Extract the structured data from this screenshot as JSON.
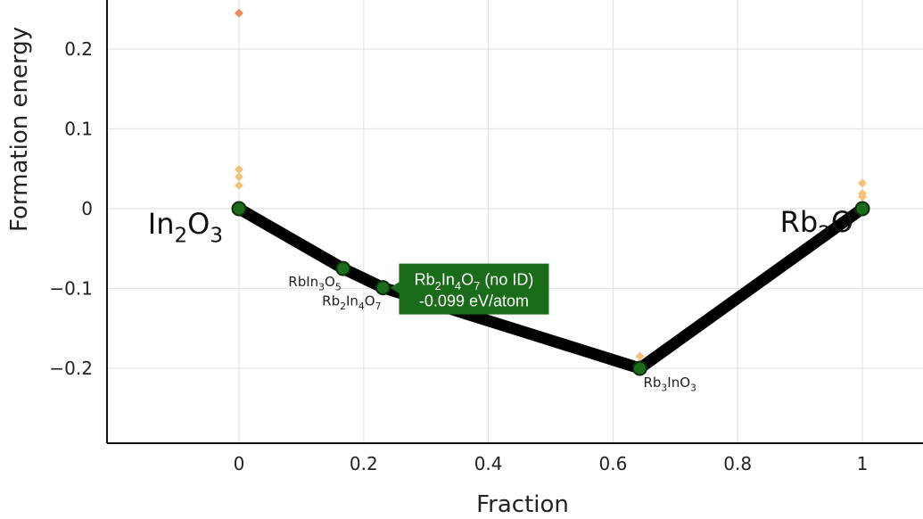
{
  "chart_data": {
    "type": "scatter",
    "xlabel": "Fraction",
    "ylabel": "Formation energy",
    "xlim": [
      -0.21,
      1.1
    ],
    "ylim": [
      -0.295,
      0.26
    ],
    "x_ticks": [
      0,
      0.2,
      0.4,
      0.6,
      0.8,
      1
    ],
    "x_tick_labels": [
      "0",
      "0.2",
      "0.4",
      "0.6",
      "0.8",
      "1"
    ],
    "y_ticks": [
      -0.2,
      -0.1,
      0,
      0.1,
      0.2
    ],
    "y_tick_labels": [
      "−0.2",
      "−0.1",
      "0",
      "0.1",
      "0.2"
    ],
    "grid": true,
    "hull": {
      "name": "convex hull",
      "color": "#000000",
      "points": [
        {
          "x": 0,
          "y": 0
        },
        {
          "x": 0.167,
          "y": -0.075
        },
        {
          "x": 0.231,
          "y": -0.099
        },
        {
          "x": 0.643,
          "y": -0.2
        },
        {
          "x": 1,
          "y": 0
        }
      ]
    },
    "stable_marker_color": "#1a6b1a",
    "stable_labels": [
      {
        "x": 0.167,
        "y": -0.075,
        "label": "RbIn3O5",
        "base": [
          "Rb",
          "In",
          "O"
        ],
        "subs": [
          "",
          "3",
          "5"
        ],
        "anchor": "end",
        "dx": -2,
        "dy": 20
      },
      {
        "x": 0.231,
        "y": -0.099,
        "label": "Rb2In4O7",
        "base": [
          "Rb",
          "In",
          "O"
        ],
        "subs": [
          "2",
          "4",
          "7"
        ],
        "anchor": "end",
        "dx": -2,
        "dy": 20
      },
      {
        "x": 0.643,
        "y": -0.2,
        "label": "Rb3InO3",
        "base": [
          "Rb",
          "In",
          "O"
        ],
        "subs": [
          "3",
          "",
          "3"
        ],
        "anchor": "start",
        "dx": 4,
        "dy": 21
      }
    ],
    "end_labels": [
      {
        "x": 0,
        "y": 0,
        "label": "In2O3",
        "base": [
          "In",
          "O"
        ],
        "subs": [
          "2",
          "3"
        ],
        "anchor": "end",
        "dx": -18,
        "dy": 28
      },
      {
        "x": 1,
        "y": 0,
        "label": "Rb2O",
        "base": [
          "Rb",
          "O"
        ],
        "subs": [
          "2",
          ""
        ],
        "anchor": "end",
        "dx": -10,
        "dy": 26
      }
    ],
    "unstable": {
      "name": "unstable",
      "points": [
        {
          "x": 0,
          "y": 0.245,
          "color": "#f08a55"
        },
        {
          "x": 0,
          "y": 0.049,
          "color": "#f5c078"
        },
        {
          "x": 0,
          "y": 0.04,
          "color": "#f5c078"
        },
        {
          "x": 0,
          "y": 0.029,
          "color": "#f5c078"
        },
        {
          "x": 0.643,
          "y": -0.185,
          "color": "#f5c078"
        },
        {
          "x": 1,
          "y": 0.032,
          "color": "#f5c078"
        },
        {
          "x": 1,
          "y": 0.019,
          "color": "#f5c078"
        },
        {
          "x": 1,
          "y": 0.015,
          "color": "#f5c078"
        }
      ]
    },
    "tooltip": {
      "x": 0.231,
      "y": -0.099,
      "formula_base": [
        "Rb",
        "In",
        "O"
      ],
      "formula_subs": [
        "2",
        "4",
        "7"
      ],
      "id_text": " (no ID)",
      "energy_text": "-0.099 eV/atom",
      "background": "#1a6b1a"
    }
  }
}
